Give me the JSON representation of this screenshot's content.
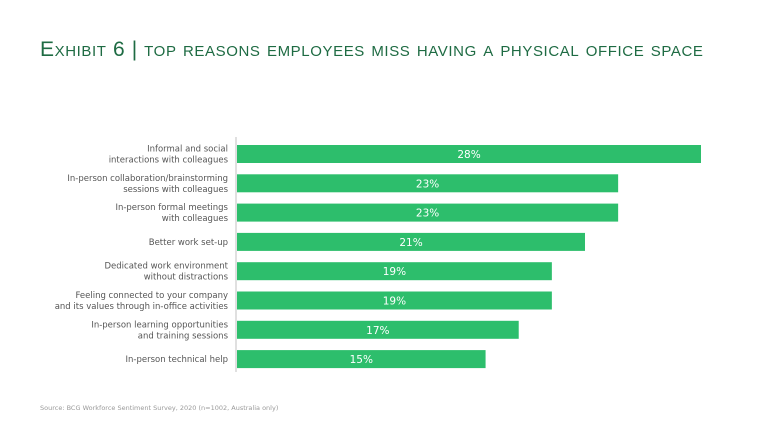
{
  "header": {
    "title": "Exhibit 6 | top reasons employees miss having a physical office space"
  },
  "chart_data": {
    "type": "bar",
    "orientation": "horizontal",
    "categories": [
      [
        "Informal and social",
        "interactions with colleagues"
      ],
      [
        "In-person collaboration/brainstorming",
        "sessions with colleagues"
      ],
      [
        "In-person formal meetings",
        "with colleagues"
      ],
      [
        "Better work set-up"
      ],
      [
        "Dedicated work environment",
        "without distractions"
      ],
      [
        "Feeling connected to your company",
        "and its values through in-office activities"
      ],
      [
        "In-person learning opportunities",
        "and training sessions"
      ],
      [
        "In-person technical help"
      ]
    ],
    "values": [
      28,
      23,
      23,
      21,
      19,
      19,
      17,
      15
    ],
    "value_labels": [
      "28%",
      "23%",
      "23%",
      "21%",
      "19%",
      "19%",
      "17%",
      "15%"
    ],
    "bar_color": "#2dbe6c",
    "axis_color": "#c0c0c0",
    "xlim": [
      0,
      28
    ],
    "grid": false
  },
  "footer": {
    "source": "Source: BCG Workforce Sentiment Survey, 2020 (n=1002, Australia only)"
  }
}
